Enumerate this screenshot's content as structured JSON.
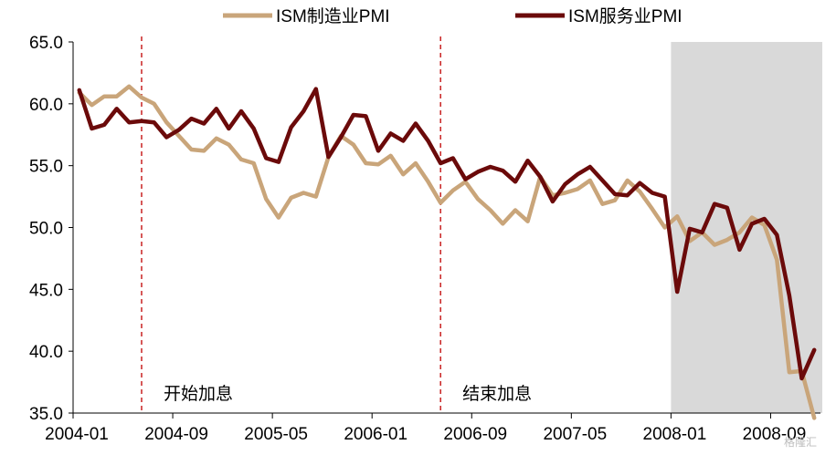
{
  "chart_data": {
    "type": "line",
    "title": "",
    "xlabel": "",
    "ylabel": "",
    "ylim": [
      35,
      65
    ],
    "yticks": [
      "65.0",
      "60.0",
      "55.0",
      "50.0",
      "45.0",
      "40.0",
      "35.0"
    ],
    "x_start": "2004-01",
    "x_tick_labels": [
      "2004-01",
      "2004-09",
      "2005-05",
      "2006-01",
      "2006-09",
      "2007-05",
      "2008-01",
      "2008-09"
    ],
    "grid": false,
    "legend_position": "top",
    "shaded_region": {
      "from": "2008-01",
      "to": "2009-03",
      "color": "#d9d9d9"
    },
    "annotations": [
      {
        "label": "开始加息",
        "x": "2004-06",
        "color": "#c00000"
      },
      {
        "label": "结束加息",
        "x": "2006-06",
        "color": "#c00000"
      }
    ],
    "series": [
      {
        "name": "ISM制造业PMI",
        "color": "#c9a57a",
        "values": [
          60.9,
          59.9,
          60.6,
          60.6,
          61.4,
          60.5,
          60.0,
          58.5,
          57.4,
          56.3,
          56.2,
          57.2,
          56.7,
          55.5,
          55.2,
          52.3,
          50.8,
          52.4,
          52.8,
          52.5,
          55.7,
          57.4,
          56.7,
          55.2,
          55.1,
          55.8,
          54.3,
          55.2,
          53.7,
          52.0,
          53.0,
          53.7,
          52.3,
          51.4,
          50.3,
          51.4,
          50.5,
          54.1,
          52.6,
          52.8,
          53.1,
          53.8,
          51.9,
          52.2,
          53.8,
          52.9,
          51.5,
          50.0,
          50.9,
          48.9,
          49.6,
          48.6,
          49.0,
          49.6,
          50.8,
          50.2,
          47.4,
          38.3,
          38.4,
          34.6
        ]
      },
      {
        "name": "ISM服务业PMI",
        "color": "#6b0a0a",
        "values": [
          61.1,
          58.0,
          58.3,
          59.6,
          58.5,
          58.6,
          58.5,
          57.3,
          57.9,
          58.8,
          58.4,
          59.6,
          58.0,
          59.4,
          58.0,
          55.6,
          55.3,
          58.1,
          59.4,
          61.2,
          55.7,
          57.3,
          59.1,
          59.0,
          56.2,
          57.6,
          57.0,
          58.4,
          57.0,
          55.2,
          55.6,
          53.9,
          54.5,
          54.9,
          54.6,
          53.7,
          55.4,
          54.1,
          52.1,
          53.5,
          54.3,
          54.9,
          53.8,
          52.7,
          52.6,
          53.6,
          52.8,
          52.5,
          44.8,
          49.9,
          49.6,
          51.9,
          51.6,
          48.2,
          50.3,
          50.7,
          49.4,
          44.5,
          37.8,
          40.1
        ]
      }
    ]
  },
  "watermark": "格隆汇"
}
